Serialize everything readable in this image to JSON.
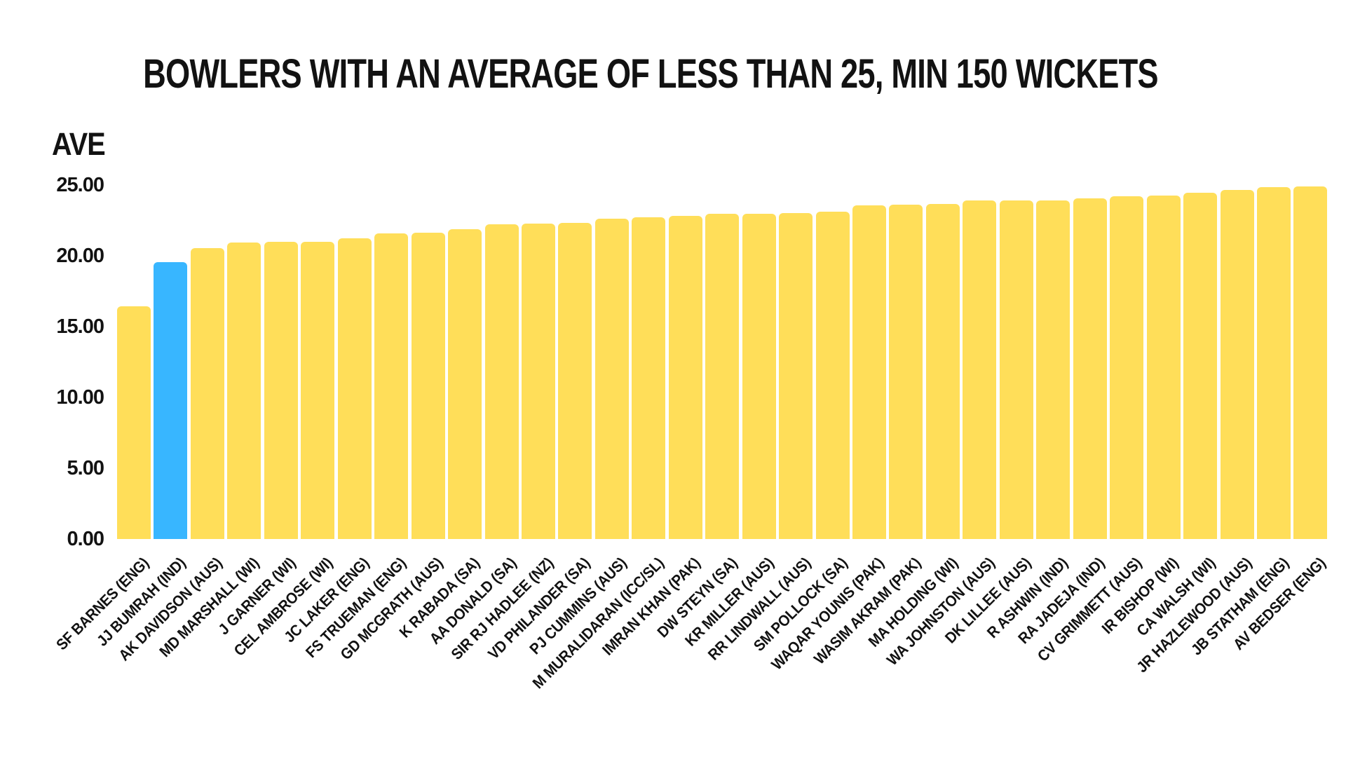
{
  "chart_data": {
    "type": "bar",
    "title": "BOWLERS WITH AN AVERAGE OF LESS THAN 25, MIN 150 WICKETS",
    "ylabel": "AVE",
    "xlabel": "",
    "ylim": [
      0,
      25
    ],
    "ytick_labels": [
      "0.00",
      "5.00",
      "10.00",
      "15.00",
      "20.00",
      "25.00"
    ],
    "ytick_values": [
      0,
      5,
      10,
      15,
      20,
      25
    ],
    "grid": false,
    "legend_position": "none",
    "bar_color": "#FFDE59",
    "highlight_color": "#38B6FF",
    "highlighted_category": "JJ BUMRAH (IND)",
    "categories": [
      "SF BARNES (ENG)",
      "JJ BUMRAH (IND)",
      "AK DAVIDSON (AUS)",
      "MD MARSHALL (WI)",
      "J GARNER (WI)",
      "CEL AMBROSE (WI)",
      "JC LAKER (ENG)",
      "FS TRUEMAN (ENG)",
      "GD MCGRATH (AUS)",
      "K RABADA (SA)",
      "AA DONALD (SA)",
      "SIR RJ HADLEE (NZ)",
      "VD PHILANDER (SA)",
      "PJ CUMMINS (AUS)",
      "M MURALIDARAN (ICC/SL)",
      "IMRAN KHAN (PAK)",
      "DW STEYN (SA)",
      "KR MILLER (AUS)",
      "RR LINDWALL (AUS)",
      "SM POLLOCK (SA)",
      "WAQAR YOUNIS (PAK)",
      "WASIM AKRAM (PAK)",
      "MA HOLDING (WI)",
      "WA JOHNSTON (AUS)",
      "DK LILLEE (AUS)",
      "R ASHWIN (IND)",
      "RA JADEJA (IND)",
      "CV GRIMMETT (AUS)",
      "IR BISHOP (WI)",
      "CA WALSH (WI)",
      "JR HAZLEWOOD (AUS)",
      "JB STATHAM (ENG)",
      "AV BEDSER (ENG)"
    ],
    "values": [
      16.43,
      19.56,
      20.53,
      20.94,
      20.97,
      20.99,
      21.24,
      21.57,
      21.64,
      21.9,
      22.25,
      22.29,
      22.32,
      22.6,
      22.72,
      22.81,
      22.95,
      22.97,
      23.03,
      23.11,
      23.56,
      23.62,
      23.68,
      23.91,
      23.92,
      23.93,
      24.08,
      24.21,
      24.27,
      24.44,
      24.65,
      24.84,
      24.89
    ]
  }
}
